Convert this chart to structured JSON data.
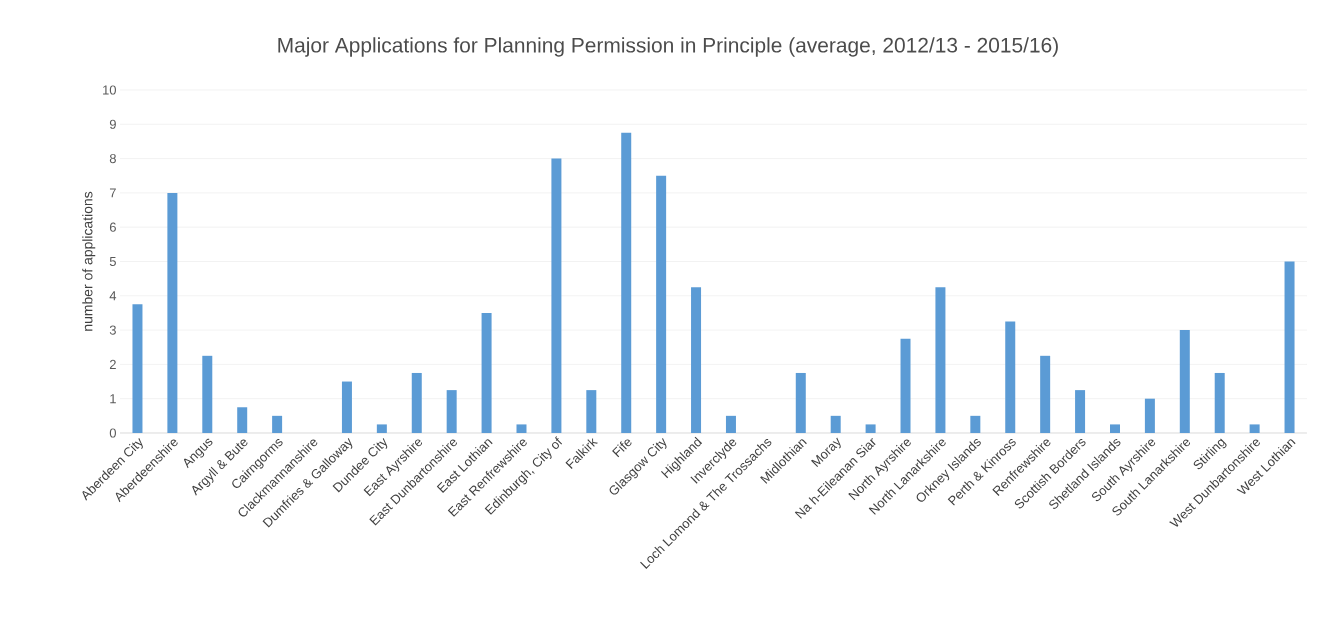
{
  "chart_data": {
    "type": "bar",
    "title": "Major Applications for Planning Permission in Principle (average, 2012/13 - 2015/16)",
    "ylabel": "number of applications",
    "categories": [
      "Aberdeen City",
      "Aberdeenshire",
      "Angus",
      "Argyll & Bute",
      "Cairngorms",
      "Clackmannanshire",
      "Dumfries & Galloway",
      "Dundee City",
      "East Ayrshire",
      "East Dunbartonshire",
      "East Lothian",
      "East Renfrewshire",
      "Edinburgh, City of",
      "Falkirk",
      "Fife",
      "Glasgow City",
      "Highland",
      "Inverclyde",
      "Loch Lomond & The Trossachs",
      "Midlothian",
      "Moray",
      "Na h-Eileanan Siar",
      "North Ayrshire",
      "North Lanarkshire",
      "Orkney Islands",
      "Perth & Kinross",
      "Renfrewshire",
      "Scottish Borders",
      "Shetland Islands",
      "South Ayrshire",
      "South Lanarkshire",
      "Stirling",
      "West Dunbartonshire",
      "West Lothian"
    ],
    "values": [
      3.75,
      7,
      2.25,
      0.75,
      0.5,
      0,
      1.5,
      0.25,
      1.75,
      1.25,
      3.5,
      0.25,
      8,
      1.25,
      8.75,
      7.5,
      4.25,
      0.5,
      0,
      1.75,
      0.5,
      0.25,
      2.75,
      4.25,
      0.5,
      3.25,
      2.25,
      1.25,
      0.25,
      1,
      3,
      1.75,
      0.25,
      5
    ],
    "color": "#5b9bd5",
    "ylim": [
      0,
      10
    ],
    "yticks": [
      0,
      1,
      2,
      3,
      4,
      5,
      6,
      7,
      8,
      9,
      10
    ],
    "grid": "y"
  }
}
